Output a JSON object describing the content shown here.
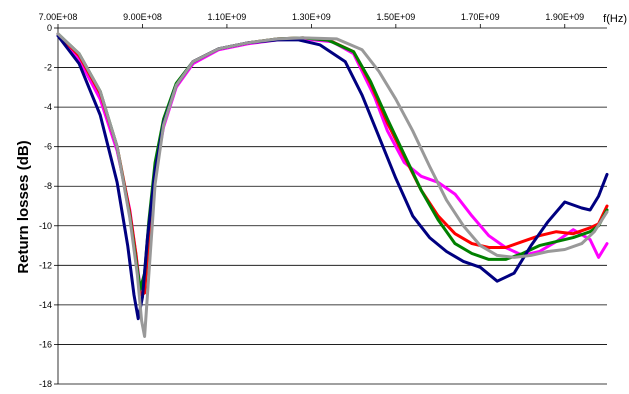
{
  "chart_data": {
    "type": "line",
    "title": "",
    "xlabel": "f(Hz)",
    "ylabel": "Return losses (dB)",
    "xlim": [
      700000000,
      2000000000
    ],
    "ylim": [
      -18,
      0
    ],
    "grid": "horizontal",
    "legend": "none",
    "x_ticks": [
      {
        "value": 700000000,
        "label": "7.00E+08"
      },
      {
        "value": 900000000,
        "label": "9.00E+08"
      },
      {
        "value": 1100000000,
        "label": "1.10E+09"
      },
      {
        "value": 1300000000,
        "label": "1.30E+09"
      },
      {
        "value": 1500000000,
        "label": "1.50E+09"
      },
      {
        "value": 1700000000,
        "label": "1.70E+09"
      },
      {
        "value": 1900000000,
        "label": "1.90E+09"
      }
    ],
    "y_ticks": [
      {
        "value": 0,
        "label": "0"
      },
      {
        "value": -2,
        "label": "-2"
      },
      {
        "value": -4,
        "label": "-4"
      },
      {
        "value": -6,
        "label": "-6"
      },
      {
        "value": -8,
        "label": "-8"
      },
      {
        "value": -10,
        "label": "-10"
      },
      {
        "value": -12,
        "label": "-12"
      },
      {
        "value": -14,
        "label": "-14"
      },
      {
        "value": -16,
        "label": "-16"
      },
      {
        "value": -18,
        "label": "-18"
      }
    ],
    "series": [
      {
        "color": "#ff00ff",
        "points": [
          [
            700000000,
            -0.3
          ],
          [
            750000000,
            -1.6
          ],
          [
            800000000,
            -3.6
          ],
          [
            840000000,
            -6.2
          ],
          [
            870000000,
            -9.2
          ],
          [
            885000000,
            -11.5
          ],
          [
            895000000,
            -13.2
          ],
          [
            905000000,
            -13.0
          ],
          [
            915000000,
            -10.5
          ],
          [
            930000000,
            -7.3
          ],
          [
            950000000,
            -5.0
          ],
          [
            980000000,
            -3.0
          ],
          [
            1020000000,
            -1.8
          ],
          [
            1080000000,
            -1.1
          ],
          [
            1150000000,
            -0.8
          ],
          [
            1220000000,
            -0.6
          ],
          [
            1280000000,
            -0.55
          ],
          [
            1350000000,
            -0.7
          ],
          [
            1400000000,
            -1.3
          ],
          [
            1450000000,
            -3.5
          ],
          [
            1480000000,
            -5.2
          ],
          [
            1520000000,
            -6.8
          ],
          [
            1560000000,
            -7.5
          ],
          [
            1600000000,
            -7.8
          ],
          [
            1640000000,
            -8.4
          ],
          [
            1680000000,
            -9.5
          ],
          [
            1720000000,
            -10.5
          ],
          [
            1760000000,
            -11.1
          ],
          [
            1800000000,
            -11.5
          ],
          [
            1840000000,
            -11.3
          ],
          [
            1880000000,
            -10.8
          ],
          [
            1920000000,
            -10.2
          ],
          [
            1960000000,
            -10.7
          ],
          [
            1980000000,
            -11.6
          ],
          [
            2000000000,
            -10.9
          ]
        ]
      },
      {
        "color": "#ff0000",
        "points": [
          [
            700000000,
            -0.3
          ],
          [
            750000000,
            -1.4
          ],
          [
            800000000,
            -3.3
          ],
          [
            840000000,
            -6.0
          ],
          [
            870000000,
            -9.3
          ],
          [
            885000000,
            -11.5
          ],
          [
            895000000,
            -13.5
          ],
          [
            905000000,
            -13.4
          ],
          [
            915000000,
            -10.6
          ],
          [
            930000000,
            -7.2
          ],
          [
            950000000,
            -4.8
          ],
          [
            980000000,
            -2.9
          ],
          [
            1020000000,
            -1.7
          ],
          [
            1080000000,
            -1.05
          ],
          [
            1150000000,
            -0.75
          ],
          [
            1220000000,
            -0.55
          ],
          [
            1280000000,
            -0.5
          ],
          [
            1340000000,
            -0.6
          ],
          [
            1400000000,
            -1.2
          ],
          [
            1440000000,
            -2.8
          ],
          [
            1480000000,
            -4.8
          ],
          [
            1520000000,
            -6.5
          ],
          [
            1560000000,
            -8.2
          ],
          [
            1600000000,
            -9.5
          ],
          [
            1640000000,
            -10.4
          ],
          [
            1680000000,
            -10.9
          ],
          [
            1720000000,
            -11.1
          ],
          [
            1760000000,
            -11.1
          ],
          [
            1800000000,
            -10.8
          ],
          [
            1840000000,
            -10.5
          ],
          [
            1880000000,
            -10.3
          ],
          [
            1920000000,
            -10.4
          ],
          [
            1960000000,
            -10.1
          ],
          [
            1980000000,
            -9.9
          ],
          [
            2000000000,
            -9.0
          ]
        ]
      },
      {
        "color": "#008000",
        "points": [
          [
            700000000,
            -0.3
          ],
          [
            750000000,
            -1.3
          ],
          [
            800000000,
            -3.2
          ],
          [
            840000000,
            -6.0
          ],
          [
            870000000,
            -9.5
          ],
          [
            885000000,
            -11.8
          ],
          [
            895000000,
            -13.2
          ],
          [
            905000000,
            -12.4
          ],
          [
            915000000,
            -9.8
          ],
          [
            930000000,
            -6.8
          ],
          [
            950000000,
            -4.6
          ],
          [
            980000000,
            -2.8
          ],
          [
            1020000000,
            -1.7
          ],
          [
            1080000000,
            -1.05
          ],
          [
            1150000000,
            -0.75
          ],
          [
            1220000000,
            -0.55
          ],
          [
            1280000000,
            -0.5
          ],
          [
            1340000000,
            -0.62
          ],
          [
            1400000000,
            -1.2
          ],
          [
            1440000000,
            -2.7
          ],
          [
            1480000000,
            -4.6
          ],
          [
            1520000000,
            -6.4
          ],
          [
            1560000000,
            -8.2
          ],
          [
            1600000000,
            -9.7
          ],
          [
            1640000000,
            -10.9
          ],
          [
            1680000000,
            -11.4
          ],
          [
            1720000000,
            -11.7
          ],
          [
            1760000000,
            -11.7
          ],
          [
            1800000000,
            -11.4
          ],
          [
            1840000000,
            -11.0
          ],
          [
            1880000000,
            -10.8
          ],
          [
            1920000000,
            -10.6
          ],
          [
            1960000000,
            -10.3
          ],
          [
            1980000000,
            -10.0
          ],
          [
            2000000000,
            -9.2
          ]
        ]
      },
      {
        "color": "#000080",
        "points": [
          [
            700000000,
            -0.4
          ],
          [
            750000000,
            -1.8
          ],
          [
            800000000,
            -4.4
          ],
          [
            840000000,
            -7.8
          ],
          [
            865000000,
            -11.0
          ],
          [
            880000000,
            -13.5
          ],
          [
            890000000,
            -14.7
          ],
          [
            900000000,
            -13.6
          ],
          [
            912000000,
            -10.6
          ],
          [
            930000000,
            -7.2
          ],
          [
            950000000,
            -4.8
          ],
          [
            980000000,
            -2.9
          ],
          [
            1020000000,
            -1.7
          ],
          [
            1080000000,
            -1.05
          ],
          [
            1150000000,
            -0.75
          ],
          [
            1220000000,
            -0.6
          ],
          [
            1270000000,
            -0.6
          ],
          [
            1320000000,
            -0.85
          ],
          [
            1380000000,
            -1.7
          ],
          [
            1420000000,
            -3.4
          ],
          [
            1460000000,
            -5.5
          ],
          [
            1500000000,
            -7.6
          ],
          [
            1540000000,
            -9.5
          ],
          [
            1580000000,
            -10.6
          ],
          [
            1620000000,
            -11.3
          ],
          [
            1660000000,
            -11.8
          ],
          [
            1700000000,
            -12.1
          ],
          [
            1740000000,
            -12.8
          ],
          [
            1780000000,
            -12.4
          ],
          [
            1820000000,
            -11.0
          ],
          [
            1860000000,
            -9.8
          ],
          [
            1900000000,
            -8.8
          ],
          [
            1940000000,
            -9.1
          ],
          [
            1960000000,
            -9.2
          ],
          [
            1980000000,
            -8.5
          ],
          [
            2000000000,
            -7.4
          ]
        ]
      },
      {
        "color": "#999999",
        "points": [
          [
            700000000,
            -0.3
          ],
          [
            750000000,
            -1.3
          ],
          [
            800000000,
            -3.2
          ],
          [
            840000000,
            -6.0
          ],
          [
            870000000,
            -9.6
          ],
          [
            888000000,
            -12.5
          ],
          [
            898000000,
            -14.8
          ],
          [
            905000000,
            -15.6
          ],
          [
            915000000,
            -12.5
          ],
          [
            930000000,
            -7.9
          ],
          [
            950000000,
            -4.9
          ],
          [
            980000000,
            -2.9
          ],
          [
            1020000000,
            -1.7
          ],
          [
            1080000000,
            -1.05
          ],
          [
            1150000000,
            -0.75
          ],
          [
            1220000000,
            -0.55
          ],
          [
            1280000000,
            -0.5
          ],
          [
            1360000000,
            -0.55
          ],
          [
            1420000000,
            -1.1
          ],
          [
            1460000000,
            -2.2
          ],
          [
            1500000000,
            -3.6
          ],
          [
            1540000000,
            -5.2
          ],
          [
            1580000000,
            -7.0
          ],
          [
            1620000000,
            -8.7
          ],
          [
            1660000000,
            -10.0
          ],
          [
            1700000000,
            -11.0
          ],
          [
            1740000000,
            -11.5
          ],
          [
            1780000000,
            -11.6
          ],
          [
            1820000000,
            -11.5
          ],
          [
            1860000000,
            -11.3
          ],
          [
            1900000000,
            -11.2
          ],
          [
            1940000000,
            -10.9
          ],
          [
            1970000000,
            -10.3
          ],
          [
            2000000000,
            -9.3
          ]
        ]
      }
    ]
  }
}
